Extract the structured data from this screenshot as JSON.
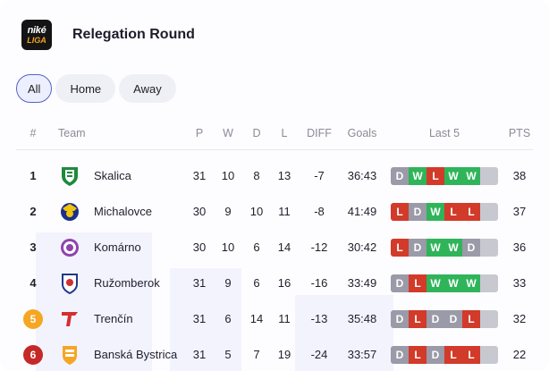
{
  "app": {
    "logo_line1": "niké",
    "logo_line2": "LIGA",
    "title": "Relegation Round"
  },
  "filters": [
    {
      "label": "All",
      "active": true
    },
    {
      "label": "Home",
      "active": false
    },
    {
      "label": "Away",
      "active": false
    }
  ],
  "columns": {
    "rank": "#",
    "team": "Team",
    "played": "P",
    "won": "W",
    "drawn": "D",
    "lost": "L",
    "diff": "DIFF",
    "goals": "Goals",
    "last5": "Last 5",
    "points": "PTS"
  },
  "colors": {
    "win": "#2fb45a",
    "draw": "#9a9aa8",
    "loss": "#d23a2a",
    "rank_5_badge": "#f5a623",
    "rank_6_badge": "#c62828"
  },
  "rows": [
    {
      "rank": "1",
      "team": "Skalica",
      "crest": "skalica-crest-icon",
      "p": "31",
      "w": "10",
      "d": "8",
      "l": "13",
      "diff": "-7",
      "goals": "36:43",
      "last5": [
        "D",
        "W",
        "L",
        "W",
        "W"
      ],
      "pts": "38"
    },
    {
      "rank": "2",
      "team": "Michalovce",
      "crest": "michalovce-crest-icon",
      "p": "30",
      "w": "9",
      "d": "10",
      "l": "11",
      "diff": "-8",
      "goals": "41:49",
      "last5": [
        "L",
        "D",
        "W",
        "L",
        "L"
      ],
      "pts": "37"
    },
    {
      "rank": "3",
      "team": "Komárno",
      "crest": "komarno-crest-icon",
      "p": "30",
      "w": "10",
      "d": "6",
      "l": "14",
      "diff": "-12",
      "goals": "30:42",
      "last5": [
        "L",
        "D",
        "W",
        "W",
        "D"
      ],
      "pts": "36"
    },
    {
      "rank": "4",
      "team": "Ružomberok",
      "crest": "ruzomberok-crest-icon",
      "p": "31",
      "w": "9",
      "d": "6",
      "l": "16",
      "diff": "-16",
      "goals": "33:49",
      "last5": [
        "D",
        "L",
        "W",
        "W",
        "W"
      ],
      "pts": "33"
    },
    {
      "rank": "5",
      "team": "Trenčín",
      "crest": "trencin-crest-icon",
      "p": "31",
      "w": "6",
      "d": "14",
      "l": "11",
      "diff": "-13",
      "goals": "35:48",
      "last5": [
        "D",
        "L",
        "D",
        "D",
        "L"
      ],
      "pts": "32"
    },
    {
      "rank": "6",
      "team": "Banská Bystrica",
      "crest": "banska-bystrica-crest-icon",
      "p": "31",
      "w": "5",
      "d": "7",
      "l": "19",
      "diff": "-24",
      "goals": "33:57",
      "last5": [
        "D",
        "L",
        "D",
        "L",
        "L"
      ],
      "pts": "22"
    }
  ]
}
